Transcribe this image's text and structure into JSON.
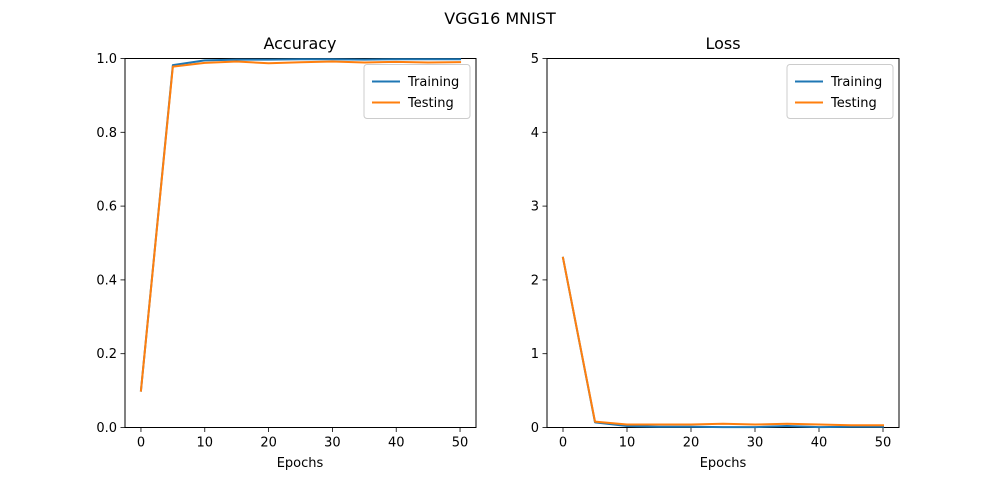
{
  "figure_title": "VGG16 MNIST",
  "chart_data": [
    {
      "type": "line",
      "title": "Accuracy",
      "xlabel": "Epochs",
      "ylabel": "",
      "xlim": [
        -2.5,
        52.5
      ],
      "ylim": [
        0,
        1.0
      ],
      "xticks": [
        0,
        10,
        20,
        30,
        40,
        50
      ],
      "yticks": [
        0.0,
        0.2,
        0.4,
        0.6,
        0.8,
        1.0
      ],
      "xtick_labels": [
        "0",
        "10",
        "20",
        "30",
        "40",
        "50"
      ],
      "ytick_labels": [
        "0.0",
        "0.2",
        "0.4",
        "0.6",
        "0.8",
        "1.0"
      ],
      "grid": false,
      "legend_position": "top-right",
      "x": [
        0,
        5,
        10,
        15,
        20,
        25,
        30,
        35,
        40,
        45,
        50
      ],
      "series": [
        {
          "name": "Training",
          "color": "#1f77b4",
          "values": [
            0.1,
            0.982,
            0.995,
            0.997,
            0.997,
            0.998,
            0.998,
            0.997,
            0.998,
            0.998,
            0.998
          ]
        },
        {
          "name": "Testing",
          "color": "#ff7f0e",
          "values": [
            0.1,
            0.978,
            0.988,
            0.992,
            0.987,
            0.99,
            0.992,
            0.989,
            0.991,
            0.989,
            0.99
          ]
        }
      ]
    },
    {
      "type": "line",
      "title": "Loss",
      "xlabel": "Epochs",
      "ylabel": "",
      "xlim": [
        -2.5,
        52.5
      ],
      "ylim": [
        0,
        5
      ],
      "xticks": [
        0,
        10,
        20,
        30,
        40,
        50
      ],
      "yticks": [
        0,
        1,
        2,
        3,
        4,
        5
      ],
      "xtick_labels": [
        "0",
        "10",
        "20",
        "30",
        "40",
        "50"
      ],
      "ytick_labels": [
        "0",
        "1",
        "2",
        "3",
        "4",
        "5"
      ],
      "grid": false,
      "legend_position": "top-right",
      "x": [
        0,
        5,
        10,
        15,
        20,
        25,
        30,
        35,
        40,
        45,
        50
      ],
      "series": [
        {
          "name": "Training",
          "color": "#1f77b4",
          "values": [
            2.3,
            0.07,
            0.02,
            0.01,
            0.01,
            0.005,
            0.005,
            0.02,
            0.005,
            0.01,
            0.01
          ]
        },
        {
          "name": "Testing",
          "color": "#ff7f0e",
          "values": [
            2.3,
            0.08,
            0.04,
            0.04,
            0.04,
            0.05,
            0.04,
            0.05,
            0.04,
            0.03,
            0.03
          ]
        }
      ]
    }
  ]
}
